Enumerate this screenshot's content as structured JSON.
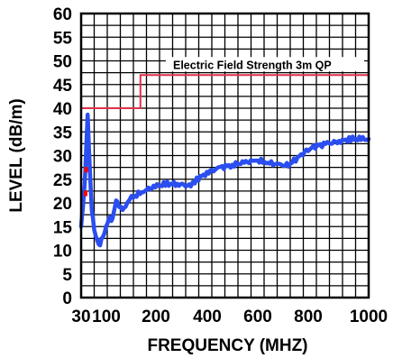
{
  "chart_data": {
    "type": "line",
    "title": "",
    "xlabel": "FREQUENCY (MHZ)",
    "ylabel": "LEVEL (dB/m)",
    "xlim": [
      30,
      1000
    ],
    "ylim": [
      0,
      60
    ],
    "x_ticks": [
      30,
      100,
      200,
      400,
      600,
      800,
      1000
    ],
    "x_tick_labels": [
      "30",
      "100",
      "200",
      "400",
      "600",
      "800",
      "1000"
    ],
    "y_ticks": [
      0,
      5,
      10,
      15,
      20,
      25,
      30,
      35,
      40,
      45,
      50,
      55,
      60
    ],
    "y_tick_labels": [
      "0",
      "5",
      "10",
      "15",
      "20",
      "25",
      "30",
      "35",
      "40",
      "45",
      "50",
      "55",
      "60"
    ],
    "grid": true,
    "colors": {
      "limit": "#e0304a",
      "measured": "#2a4ef0",
      "peak_marker": "#ff0000"
    },
    "annotation": "Electric Field Strength 3m QP",
    "series": [
      {
        "role": "limit",
        "x": [
          30,
          230,
          230,
          1000
        ],
        "y": [
          40,
          40,
          47,
          47
        ]
      },
      {
        "role": "measured",
        "x": [
          30,
          36,
          42,
          47,
          52,
          56,
          60,
          66,
          74,
          84,
          94,
          104,
          114,
          124,
          132,
          140,
          148,
          156,
          164,
          170,
          180,
          200,
          240,
          280,
          320,
          360,
          400,
          420,
          460,
          500,
          540,
          580,
          620,
          660,
          700,
          730,
          760,
          790,
          820,
          860,
          900,
          940,
          980,
          1000
        ],
        "y": [
          15,
          19,
          24,
          31,
          39,
          32,
          26,
          19,
          14,
          12,
          11.5,
          12.5,
          15,
          17,
          16,
          18,
          20.5,
          19.5,
          19,
          18.5,
          19.5,
          21,
          22.5,
          23.5,
          24,
          24,
          23.5,
          25,
          26.5,
          27.5,
          28,
          28.5,
          29,
          28.5,
          28,
          28,
          29.5,
          31,
          32,
          32.5,
          33,
          33.5,
          33.5,
          33.5
        ]
      }
    ],
    "peak_markers": [
      {
        "x": 45,
        "y": 22
      },
      {
        "x": 47,
        "y": 27
      }
    ]
  }
}
